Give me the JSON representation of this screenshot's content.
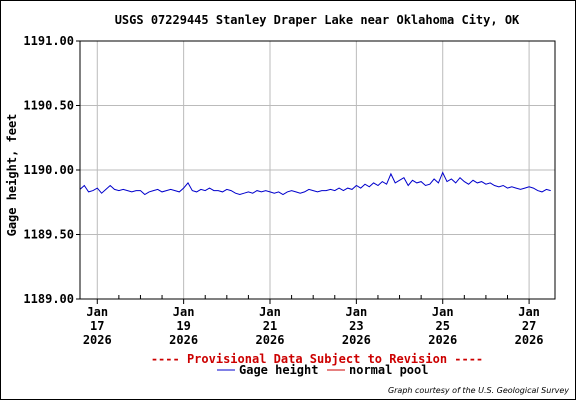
{
  "chart_data": {
    "type": "line",
    "title": "USGS 07229445 Stanley Draper Lake near Oklahoma City, OK",
    "ylabel": "Gage height, feet",
    "xlabel": "",
    "ylim": [
      1189.0,
      1191.0
    ],
    "y_ticks": [
      1189.0,
      1189.5,
      1190.0,
      1190.5,
      1191.0
    ],
    "y_tick_labels": [
      "1189.00",
      "1189.50",
      "1190.00",
      "1190.50",
      "1191.00"
    ],
    "x_range_days": [
      16.6,
      27.6
    ],
    "x_ticks": [
      {
        "day": 17,
        "label": [
          "Jan",
          "17",
          "2026"
        ]
      },
      {
        "day": 19,
        "label": [
          "Jan",
          "19",
          "2026"
        ]
      },
      {
        "day": 21,
        "label": [
          "Jan",
          "21",
          "2026"
        ]
      },
      {
        "day": 23,
        "label": [
          "Jan",
          "23",
          "2026"
        ]
      },
      {
        "day": 25,
        "label": [
          "Jan",
          "25",
          "2026"
        ]
      },
      {
        "day": 27,
        "label": [
          "Jan",
          "27",
          "2026"
        ]
      }
    ],
    "grid": true,
    "series": [
      {
        "name": "Gage height",
        "color": "#0000cc",
        "x": [
          16.6,
          16.7,
          16.8,
          16.9,
          17.0,
          17.1,
          17.2,
          17.3,
          17.4,
          17.5,
          17.6,
          17.7,
          17.8,
          17.9,
          18.0,
          18.1,
          18.2,
          18.3,
          18.4,
          18.5,
          18.6,
          18.7,
          18.8,
          18.9,
          19.0,
          19.1,
          19.2,
          19.3,
          19.4,
          19.5,
          19.6,
          19.7,
          19.8,
          19.9,
          20.0,
          20.1,
          20.2,
          20.3,
          20.4,
          20.5,
          20.6,
          20.7,
          20.8,
          20.9,
          21.0,
          21.1,
          21.2,
          21.3,
          21.4,
          21.5,
          21.6,
          21.7,
          21.8,
          21.9,
          22.0,
          22.1,
          22.2,
          22.3,
          22.4,
          22.5,
          22.6,
          22.7,
          22.8,
          22.9,
          23.0,
          23.1,
          23.2,
          23.3,
          23.4,
          23.5,
          23.6,
          23.7,
          23.8,
          23.9,
          24.0,
          24.1,
          24.2,
          24.3,
          24.4,
          24.5,
          24.6,
          24.7,
          24.8,
          24.9,
          25.0,
          25.1,
          25.2,
          25.3,
          25.4,
          25.5,
          25.6,
          25.7,
          25.8,
          25.9,
          26.0,
          26.1,
          26.2,
          26.3,
          26.4,
          26.5,
          26.6,
          26.7,
          26.8,
          26.9,
          27.0,
          27.1,
          27.2,
          27.3,
          27.4,
          27.5
        ],
        "values": [
          1189.85,
          1189.88,
          1189.83,
          1189.84,
          1189.86,
          1189.82,
          1189.85,
          1189.88,
          1189.85,
          1189.84,
          1189.85,
          1189.84,
          1189.83,
          1189.84,
          1189.84,
          1189.81,
          1189.83,
          1189.84,
          1189.85,
          1189.83,
          1189.84,
          1189.85,
          1189.84,
          1189.83,
          1189.86,
          1189.9,
          1189.84,
          1189.83,
          1189.85,
          1189.84,
          1189.86,
          1189.84,
          1189.84,
          1189.83,
          1189.85,
          1189.84,
          1189.82,
          1189.81,
          1189.82,
          1189.83,
          1189.82,
          1189.84,
          1189.83,
          1189.84,
          1189.83,
          1189.82,
          1189.83,
          1189.81,
          1189.83,
          1189.84,
          1189.83,
          1189.82,
          1189.83,
          1189.85,
          1189.84,
          1189.83,
          1189.84,
          1189.84,
          1189.85,
          1189.84,
          1189.86,
          1189.84,
          1189.86,
          1189.85,
          1189.88,
          1189.86,
          1189.89,
          1189.87,
          1189.9,
          1189.88,
          1189.91,
          1189.89,
          1189.97,
          1189.9,
          1189.92,
          1189.94,
          1189.88,
          1189.92,
          1189.9,
          1189.91,
          1189.88,
          1189.89,
          1189.93,
          1189.9,
          1189.98,
          1189.91,
          1189.93,
          1189.9,
          1189.94,
          1189.91,
          1189.89,
          1189.92,
          1189.9,
          1189.91,
          1189.89,
          1189.9,
          1189.88,
          1189.87,
          1189.88,
          1189.86,
          1189.87,
          1189.86,
          1189.85,
          1189.86,
          1189.87,
          1189.86,
          1189.84,
          1189.83,
          1189.85,
          1189.84
        ]
      },
      {
        "name": "normal pool",
        "color": "#cc0000",
        "x": [
          16.6,
          27.6
        ],
        "values": [
          1191.0,
          1191.0
        ]
      }
    ],
    "provisional_note": "---- Provisional Data Subject to Revision ----",
    "credit": "Graph courtesy of the U.S. Geological Survey"
  }
}
